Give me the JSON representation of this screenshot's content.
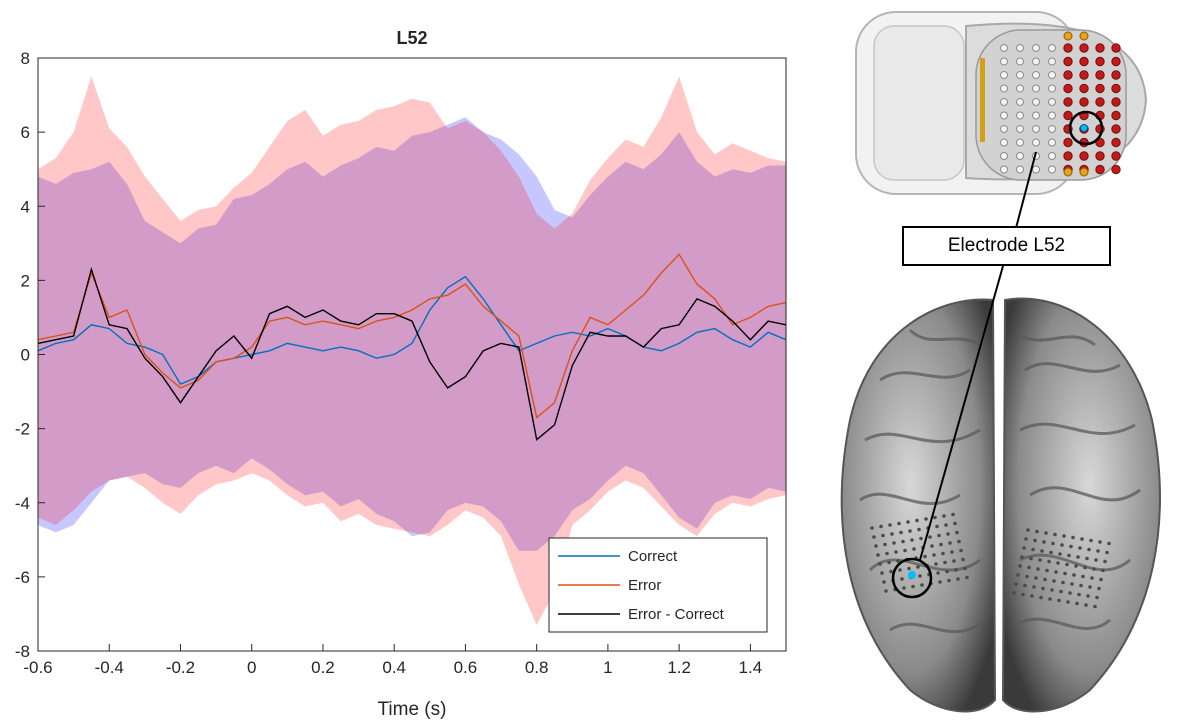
{
  "chart_data": {
    "type": "line",
    "title": "L52",
    "xlabel": "Time (s)",
    "ylabel": "",
    "xlim": [
      -0.6,
      1.5
    ],
    "ylim": [
      -8,
      8
    ],
    "xticks": [
      -0.6,
      -0.4,
      -0.2,
      0,
      0.2,
      0.4,
      0.6,
      0.8,
      1,
      1.2,
      1.4
    ],
    "yticks": [
      -8,
      -6,
      -4,
      -2,
      0,
      2,
      4,
      6,
      8
    ],
    "xtick_labels": [
      "-0.6",
      "-0.4",
      "-0.2",
      "0",
      "0.2",
      "0.4",
      "0.6",
      "0.8",
      "1",
      "1.2",
      "1.4"
    ],
    "ytick_labels": [
      "-8",
      "-6",
      "-4",
      "-2",
      "0",
      "2",
      "4",
      "6",
      "8"
    ],
    "grid": false,
    "legend_position": "bottom-right",
    "x": [
      -0.6,
      -0.55,
      -0.5,
      -0.45,
      -0.4,
      -0.35,
      -0.3,
      -0.25,
      -0.2,
      -0.15,
      -0.1,
      -0.05,
      0,
      0.05,
      0.1,
      0.15,
      0.2,
      0.25,
      0.3,
      0.35,
      0.4,
      0.45,
      0.5,
      0.55,
      0.6,
      0.65,
      0.7,
      0.75,
      0.8,
      0.85,
      0.9,
      0.95,
      1,
      1.05,
      1.1,
      1.15,
      1.2,
      1.25,
      1.3,
      1.35,
      1.4,
      1.45,
      1.5
    ],
    "series": [
      {
        "name": "Correct",
        "color": "#0072BD",
        "values": [
          0.1,
          0.3,
          0.4,
          0.8,
          0.7,
          0.3,
          0.2,
          0.0,
          -0.8,
          -0.6,
          -0.2,
          -0.1,
          0.0,
          0.1,
          0.3,
          0.2,
          0.1,
          0.2,
          0.1,
          -0.1,
          0.0,
          0.3,
          1.2,
          1.8,
          2.1,
          1.5,
          0.8,
          0.1,
          0.3,
          0.5,
          0.6,
          0.5,
          0.7,
          0.5,
          0.2,
          0.1,
          0.3,
          0.6,
          0.7,
          0.4,
          0.2,
          0.6,
          0.4
        ]
      },
      {
        "name": "Error",
        "color": "#D95319",
        "values": [
          0.4,
          0.5,
          0.6,
          2.2,
          1.0,
          1.2,
          0.0,
          -0.5,
          -0.9,
          -0.7,
          -0.2,
          -0.1,
          0.2,
          0.9,
          1.0,
          0.8,
          0.9,
          0.8,
          0.7,
          0.9,
          1.0,
          1.2,
          1.5,
          1.6,
          1.9,
          1.3,
          0.9,
          0.5,
          -1.7,
          -1.3,
          0.1,
          1.0,
          0.8,
          1.2,
          1.6,
          2.2,
          2.7,
          1.9,
          1.5,
          0.8,
          1.0,
          1.3,
          1.4
        ]
      },
      {
        "name": "Error - Correct",
        "color": "#000000",
        "values": [
          0.3,
          0.4,
          0.5,
          2.3,
          0.8,
          0.7,
          -0.1,
          -0.6,
          -1.3,
          -0.6,
          0.1,
          0.5,
          -0.1,
          1.1,
          1.3,
          1.0,
          1.2,
          0.9,
          0.8,
          1.1,
          1.1,
          0.9,
          -0.2,
          -0.9,
          -0.6,
          0.1,
          0.3,
          0.2,
          -2.3,
          -1.9,
          -0.3,
          0.6,
          0.5,
          0.5,
          0.2,
          0.7,
          0.8,
          1.5,
          1.3,
          0.9,
          0.4,
          0.9,
          0.8
        ]
      }
    ],
    "bands": [
      {
        "label": "Correct spread",
        "color": "#0000FF",
        "opacity": 0.22,
        "upper": [
          4.8,
          4.6,
          4.9,
          5.0,
          5.2,
          4.6,
          3.6,
          3.3,
          3.0,
          3.4,
          3.5,
          4.2,
          4.3,
          4.6,
          5.0,
          5.2,
          4.8,
          5.1,
          5.3,
          5.6,
          5.5,
          5.9,
          6.0,
          6.2,
          6.4,
          6.0,
          5.8,
          5.4,
          4.8,
          3.9,
          3.7,
          4.3,
          4.8,
          5.2,
          5.0,
          5.4,
          6.0,
          5.2,
          4.8,
          5.0,
          4.9,
          5.1,
          5.1
        ],
        "lower": [
          -4.6,
          -4.8,
          -4.6,
          -4.0,
          -3.4,
          -3.3,
          -3.2,
          -3.5,
          -3.6,
          -3.2,
          -3.0,
          -3.2,
          -2.8,
          -3.1,
          -3.5,
          -3.8,
          -3.7,
          -4.1,
          -3.9,
          -4.3,
          -4.5,
          -4.9,
          -4.8,
          -4.2,
          -4.0,
          -4.1,
          -4.5,
          -5.3,
          -5.3,
          -4.9,
          -4.2,
          -3.9,
          -3.4,
          -3.0,
          -3.2,
          -3.8,
          -4.4,
          -4.7,
          -4.0,
          -3.8,
          -3.9,
          -3.6,
          -3.7
        ]
      },
      {
        "label": "Error spread",
        "color": "#FF0000",
        "opacity": 0.22,
        "upper": [
          5.0,
          5.3,
          6.0,
          7.5,
          6.1,
          5.6,
          4.8,
          4.2,
          3.6,
          3.9,
          4.0,
          4.5,
          4.9,
          5.6,
          6.3,
          6.6,
          5.9,
          6.2,
          6.3,
          6.6,
          6.7,
          6.9,
          6.8,
          6.1,
          6.3,
          6.0,
          5.5,
          4.8,
          3.8,
          3.4,
          3.8,
          4.7,
          5.3,
          5.8,
          5.6,
          6.4,
          7.5,
          6.0,
          5.4,
          5.7,
          5.5,
          5.3,
          5.2
        ],
        "lower": [
          -4.4,
          -4.6,
          -4.2,
          -3.7,
          -3.4,
          -3.3,
          -3.6,
          -4.0,
          -4.3,
          -3.8,
          -3.5,
          -3.4,
          -3.2,
          -3.4,
          -3.8,
          -4.1,
          -4.0,
          -4.5,
          -4.3,
          -4.6,
          -4.7,
          -4.8,
          -4.9,
          -4.6,
          -4.2,
          -4.4,
          -4.9,
          -6.2,
          -7.3,
          -6.4,
          -4.6,
          -4.2,
          -3.7,
          -3.4,
          -3.6,
          -4.1,
          -4.6,
          -4.9,
          -4.3,
          -4.0,
          -4.1,
          -3.9,
          -3.8
        ]
      }
    ],
    "legend": [
      "Correct",
      "Error",
      "Error - Correct"
    ]
  },
  "callout": {
    "label": "Electrode L52"
  },
  "figure": {
    "electrode_color": "#00BFFF",
    "electrode_row_color": "#C01A1A",
    "ground_color": "#E8A31E"
  }
}
